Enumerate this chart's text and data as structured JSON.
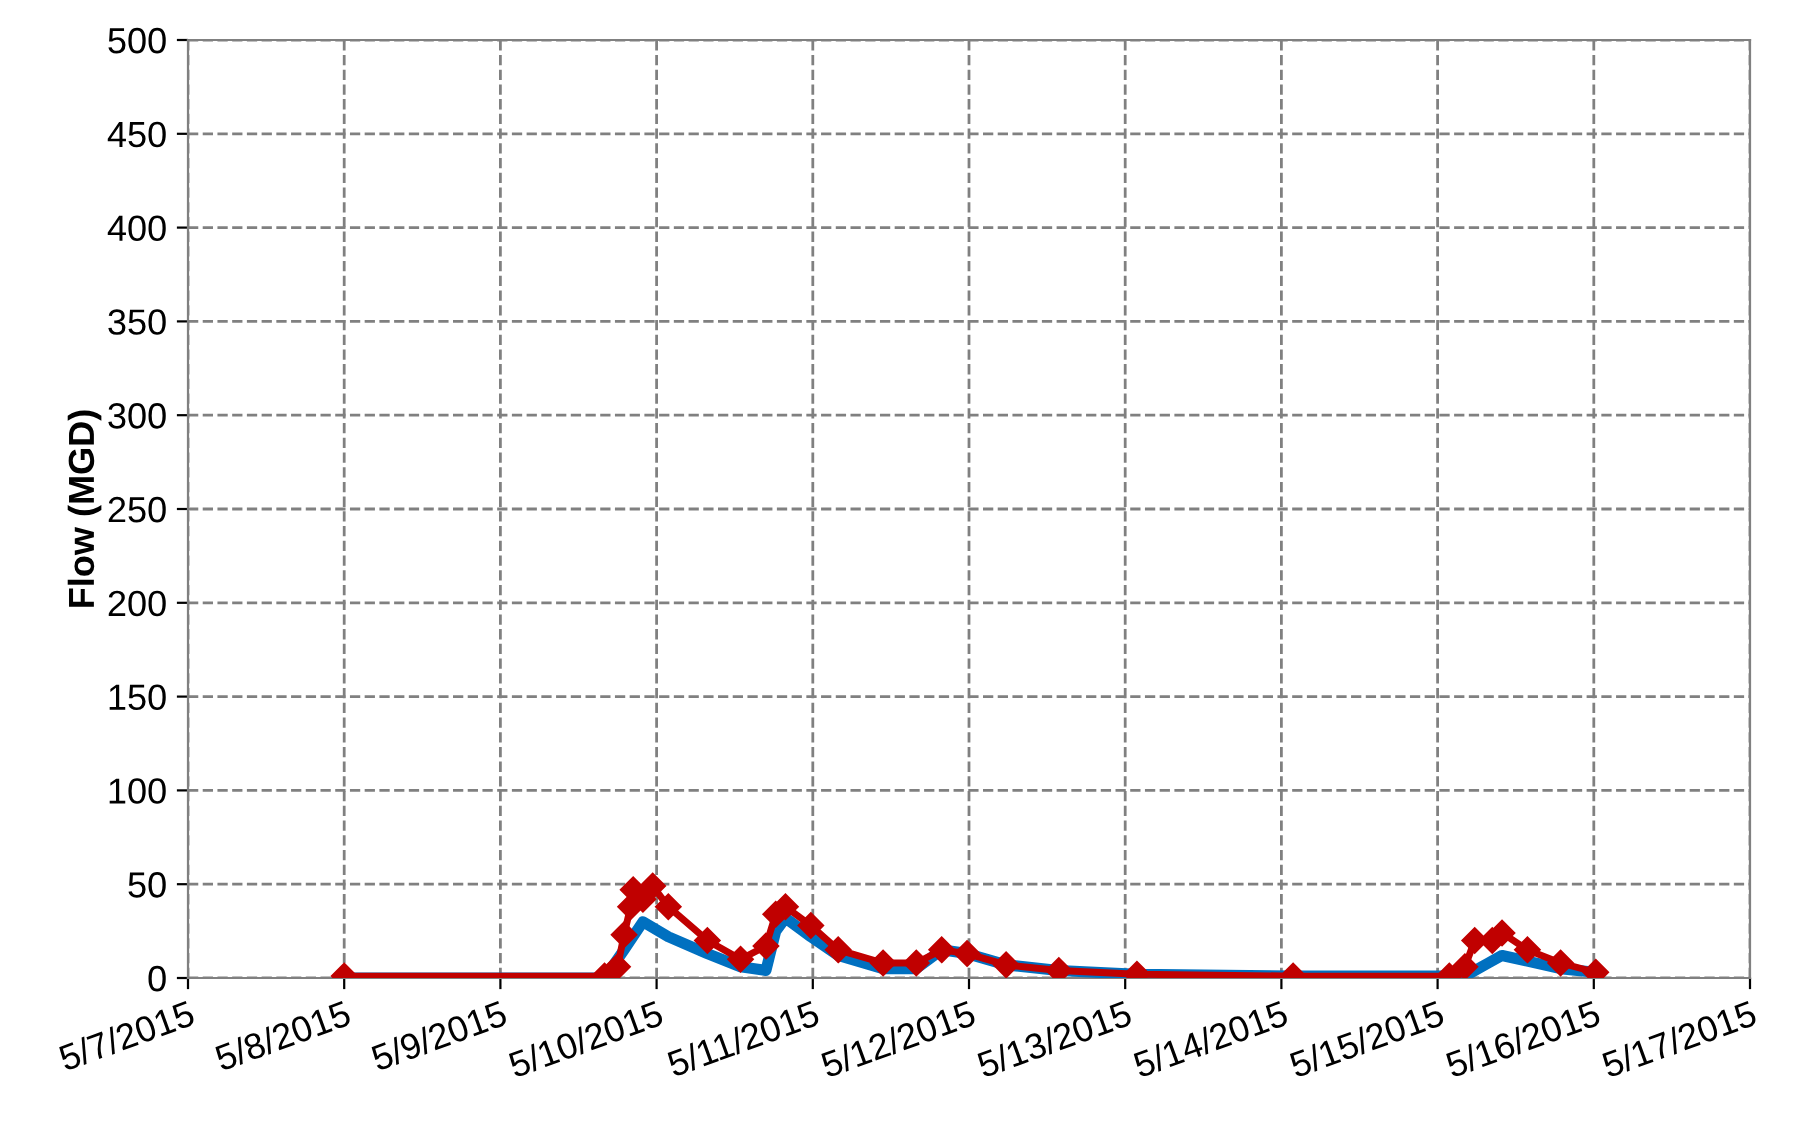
{
  "chart_data": {
    "type": "line",
    "ylabel": "Flow (MGD)",
    "xlim": [
      "2015-05-07",
      "2015-05-17"
    ],
    "xticks": [
      {
        "value": "2015-05-07",
        "label": "5/7/2015"
      },
      {
        "value": "2015-05-08",
        "label": "5/8/2015"
      },
      {
        "value": "2015-05-09",
        "label": "5/9/2015"
      },
      {
        "value": "2015-05-10",
        "label": "5/10/2015"
      },
      {
        "value": "2015-05-11",
        "label": "5/11/2015"
      },
      {
        "value": "2015-05-12",
        "label": "5/12/2015"
      },
      {
        "value": "2015-05-13",
        "label": "5/13/2015"
      },
      {
        "value": "2015-05-14",
        "label": "5/14/2015"
      },
      {
        "value": "2015-05-15",
        "label": "5/15/2015"
      },
      {
        "value": "2015-05-16",
        "label": "5/16/2015"
      },
      {
        "value": "2015-05-17",
        "label": "5/17/2015"
      }
    ],
    "ylim": [
      0,
      500
    ],
    "yticks": [
      0,
      50,
      100,
      150,
      200,
      250,
      300,
      350,
      400,
      450,
      500
    ],
    "grid": true,
    "legend": false,
    "series": [
      {
        "color": "#0070c0",
        "marker": "none",
        "line_style": "solid",
        "x": [
          "2015-05-08T00:00",
          "2015-05-09T16:00",
          "2015-05-09T19:00",
          "2015-05-09T21:54",
          "2015-05-10T01:48",
          "2015-05-10T07:48",
          "2015-05-10T12:54",
          "2015-05-10T16:48",
          "2015-05-10T18:18",
          "2015-05-10T19:48",
          "2015-05-10T23:42",
          "2015-05-11T03:54",
          "2015-05-11T10:48",
          "2015-05-11T15:54",
          "2015-05-11T19:48",
          "2015-05-11T23:42",
          "2015-05-12T05:42",
          "2015-05-12T13:48",
          "2015-05-13T01:48",
          "2015-05-14T01:48",
          "2015-05-15T04:12",
          "2015-05-15T07:48",
          "2015-05-15T09:54",
          "2015-05-15T13:48",
          "2015-05-15T18:54",
          "2015-05-16T00:18"
        ],
        "values": [
          0,
          0,
          15,
          30,
          22,
          13,
          6,
          4,
          25,
          32,
          22,
          12,
          5,
          5,
          15,
          13,
          7,
          4,
          2,
          1,
          1,
          8,
          12,
          9,
          5,
          3
        ]
      },
      {
        "color": "#c00000",
        "marker": "diamond",
        "line_style": "solid",
        "x": [
          "2015-05-08T00:00",
          "2015-05-09T16:00",
          "2015-05-09T18:00",
          "2015-05-09T19:00",
          "2015-05-09T20:00",
          "2015-05-09T20:24",
          "2015-05-09T21:54",
          "2015-05-09T23:24",
          "2015-05-10T01:48",
          "2015-05-10T07:48",
          "2015-05-10T12:54",
          "2015-05-10T16:48",
          "2015-05-10T18:18",
          "2015-05-10T19:48",
          "2015-05-10T23:42",
          "2015-05-11T03:54",
          "2015-05-11T10:48",
          "2015-05-11T15:54",
          "2015-05-11T19:48",
          "2015-05-11T23:42",
          "2015-05-12T05:42",
          "2015-05-12T13:48",
          "2015-05-13T01:48",
          "2015-05-14T01:48",
          "2015-05-15T01:48",
          "2015-05-15T04:12",
          "2015-05-15T05:42",
          "2015-05-15T08:24",
          "2015-05-15T09:54",
          "2015-05-15T13:48",
          "2015-05-15T18:54",
          "2015-05-16T00:18"
        ],
        "values": [
          1,
          1,
          6,
          23,
          38,
          47,
          42,
          49,
          38,
          20,
          10,
          17,
          34,
          38,
          28,
          15,
          8,
          8,
          15,
          13,
          7,
          4,
          2,
          1,
          1,
          6,
          20,
          20,
          24,
          15,
          8,
          3
        ]
      }
    ]
  }
}
